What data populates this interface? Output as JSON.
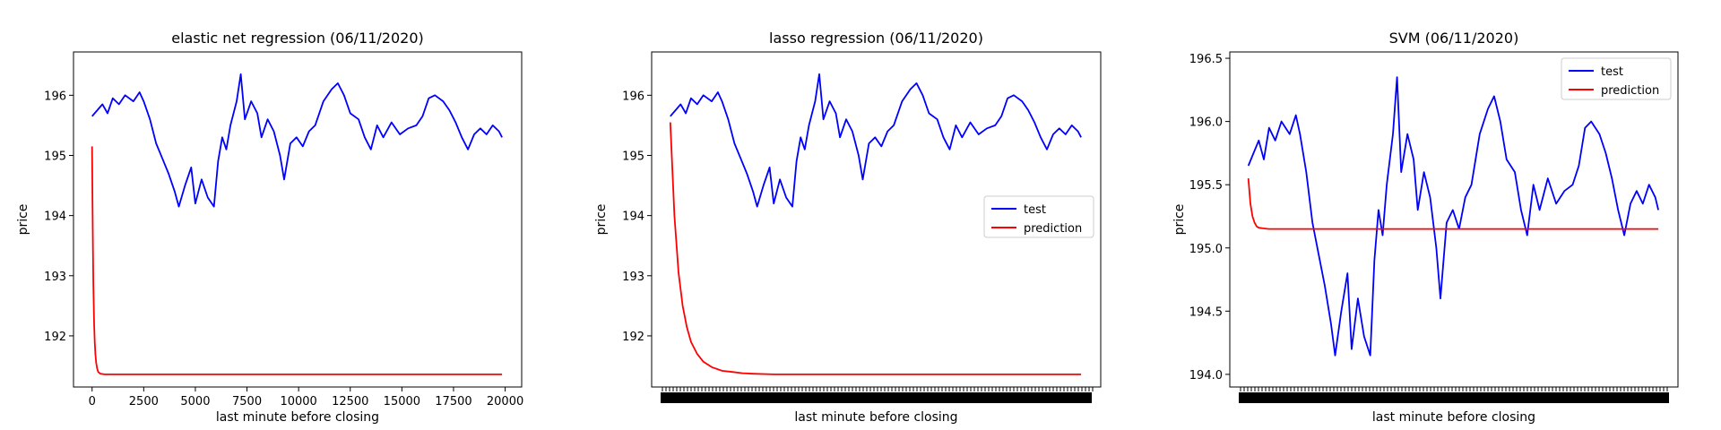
{
  "chart_data": [
    {
      "type": "line",
      "title": "elastic net regression (06/11/2020)",
      "xlabel": "last minute before closing",
      "ylabel": "price",
      "xlim": [
        -900,
        20800
      ],
      "ylim": [
        191.15,
        196.72
      ],
      "xticks": [
        0,
        2500,
        5000,
        7500,
        10000,
        12500,
        15000,
        17500,
        20000
      ],
      "xtick_labels": [
        "0",
        "2500",
        "5000",
        "7500",
        "10000",
        "12500",
        "15000",
        "17500",
        "20000"
      ],
      "yticks": [
        192,
        193,
        194,
        195,
        196
      ],
      "ytick_labels": [
        "192",
        "193",
        "194",
        "195",
        "196"
      ],
      "dense_x_ticks": false,
      "legend": null,
      "series": [
        {
          "color": "#0000ff",
          "x": [
            0,
            250,
            500,
            750,
            1000,
            1300,
            1600,
            2000,
            2300,
            2500,
            2800,
            3100,
            3400,
            3700,
            4000,
            4200,
            4500,
            4800,
            5000,
            5300,
            5600,
            5900,
            6100,
            6300,
            6500,
            6700,
            7000,
            7200,
            7400,
            7700,
            8000,
            8200,
            8500,
            8800,
            9100,
            9300,
            9600,
            9900,
            10200,
            10500,
            10800,
            11200,
            11600,
            11900,
            12200,
            12500,
            12900,
            13200,
            13500,
            13800,
            14100,
            14500,
            14900,
            15300,
            15700,
            16000,
            16300,
            16600,
            17000,
            17300,
            17600,
            17900,
            18200,
            18500,
            18800,
            19100,
            19400,
            19700,
            19850
          ],
          "y": [
            195.65,
            195.75,
            195.85,
            195.7,
            195.95,
            195.85,
            196.0,
            195.9,
            196.05,
            195.9,
            195.6,
            195.2,
            194.95,
            194.7,
            194.4,
            194.15,
            194.5,
            194.8,
            194.2,
            194.6,
            194.3,
            194.15,
            194.9,
            195.3,
            195.1,
            195.5,
            195.9,
            196.35,
            195.6,
            195.9,
            195.7,
            195.3,
            195.6,
            195.4,
            195.0,
            194.6,
            195.2,
            195.3,
            195.15,
            195.4,
            195.5,
            195.9,
            196.1,
            196.2,
            196.0,
            195.7,
            195.6,
            195.3,
            195.1,
            195.5,
            195.3,
            195.55,
            195.35,
            195.45,
            195.5,
            195.65,
            195.95,
            196.0,
            195.9,
            195.75,
            195.55,
            195.3,
            195.1,
            195.35,
            195.45,
            195.35,
            195.5,
            195.4,
            195.3
          ]
        },
        {
          "color": "#ff0000",
          "x": [
            0,
            20,
            40,
            60,
            80,
            100,
            130,
            160,
            200,
            250,
            300,
            400,
            600,
            1000,
            5000,
            10000,
            15000,
            19850
          ],
          "y": [
            195.15,
            194.2,
            193.45,
            192.9,
            192.5,
            192.2,
            191.9,
            191.7,
            191.55,
            191.45,
            191.4,
            191.37,
            191.36,
            191.36,
            191.36,
            191.36,
            191.36,
            191.36
          ]
        }
      ]
    },
    {
      "type": "line",
      "title": "lasso regression (06/11/2020)",
      "xlabel": "last minute before closing",
      "ylabel": "price",
      "xlim": [
        -900,
        20800
      ],
      "ylim": [
        191.15,
        196.72
      ],
      "xticks": [],
      "xtick_labels": [],
      "yticks": [
        192,
        193,
        194,
        195,
        196
      ],
      "ytick_labels": [
        "192",
        "193",
        "194",
        "195",
        "196"
      ],
      "dense_x_ticks": true,
      "legend": {
        "position": "center-right",
        "entries": [
          "test",
          "prediction"
        ]
      },
      "series": [
        {
          "name": "test",
          "color": "#0000ff",
          "x": [
            0,
            250,
            500,
            750,
            1000,
            1300,
            1600,
            2000,
            2300,
            2500,
            2800,
            3100,
            3400,
            3700,
            4000,
            4200,
            4500,
            4800,
            5000,
            5300,
            5600,
            5900,
            6100,
            6300,
            6500,
            6700,
            7000,
            7200,
            7400,
            7700,
            8000,
            8200,
            8500,
            8800,
            9100,
            9300,
            9600,
            9900,
            10200,
            10500,
            10800,
            11200,
            11600,
            11900,
            12200,
            12500,
            12900,
            13200,
            13500,
            13800,
            14100,
            14500,
            14900,
            15300,
            15700,
            16000,
            16300,
            16600,
            17000,
            17300,
            17600,
            17900,
            18200,
            18500,
            18800,
            19100,
            19400,
            19700,
            19850
          ],
          "y": [
            195.65,
            195.75,
            195.85,
            195.7,
            195.95,
            195.85,
            196.0,
            195.9,
            196.05,
            195.9,
            195.6,
            195.2,
            194.95,
            194.7,
            194.4,
            194.15,
            194.5,
            194.8,
            194.2,
            194.6,
            194.3,
            194.15,
            194.9,
            195.3,
            195.1,
            195.5,
            195.9,
            196.35,
            195.6,
            195.9,
            195.7,
            195.3,
            195.6,
            195.4,
            195.0,
            194.6,
            195.2,
            195.3,
            195.15,
            195.4,
            195.5,
            195.9,
            196.1,
            196.2,
            196.0,
            195.7,
            195.6,
            195.3,
            195.1,
            195.5,
            195.3,
            195.55,
            195.35,
            195.45,
            195.5,
            195.65,
            195.95,
            196.0,
            195.9,
            195.75,
            195.55,
            195.3,
            195.1,
            195.35,
            195.45,
            195.35,
            195.5,
            195.4,
            195.3
          ]
        },
        {
          "name": "prediction",
          "color": "#ff0000",
          "x": [
            0,
            200,
            400,
            600,
            800,
            1000,
            1300,
            1600,
            2000,
            2500,
            3000,
            3500,
            4000,
            5000,
            6000,
            8000,
            12000,
            16000,
            19850
          ],
          "y": [
            195.55,
            194.0,
            193.05,
            192.5,
            192.15,
            191.9,
            191.7,
            191.57,
            191.48,
            191.42,
            191.4,
            191.38,
            191.37,
            191.36,
            191.36,
            191.36,
            191.36,
            191.36,
            191.36
          ]
        }
      ]
    },
    {
      "type": "line",
      "title": "SVM (06/11/2020)",
      "xlabel": "last minute before closing",
      "ylabel": "price",
      "xlim": [
        -900,
        20800
      ],
      "ylim": [
        193.9,
        196.55
      ],
      "xticks": [],
      "xtick_labels": [],
      "yticks": [
        194.0,
        194.5,
        195.0,
        195.5,
        196.0,
        196.5
      ],
      "ytick_labels": [
        "194.0",
        "194.5",
        "195.0",
        "195.5",
        "196.0",
        "196.5"
      ],
      "dense_x_ticks": true,
      "legend": {
        "position": "top-right",
        "entries": [
          "test",
          "prediction"
        ]
      },
      "series": [
        {
          "name": "test",
          "color": "#0000ff",
          "x": [
            0,
            250,
            500,
            750,
            1000,
            1300,
            1600,
            2000,
            2300,
            2500,
            2800,
            3100,
            3400,
            3700,
            4000,
            4200,
            4500,
            4800,
            5000,
            5300,
            5600,
            5900,
            6100,
            6300,
            6500,
            6700,
            7000,
            7200,
            7400,
            7700,
            8000,
            8200,
            8500,
            8800,
            9100,
            9300,
            9600,
            9900,
            10200,
            10500,
            10800,
            11200,
            11600,
            11900,
            12200,
            12500,
            12900,
            13200,
            13500,
            13800,
            14100,
            14500,
            14900,
            15300,
            15700,
            16000,
            16300,
            16600,
            17000,
            17300,
            17600,
            17900,
            18200,
            18500,
            18800,
            19100,
            19400,
            19700,
            19850
          ],
          "y": [
            195.65,
            195.75,
            195.85,
            195.7,
            195.95,
            195.85,
            196.0,
            195.9,
            196.05,
            195.9,
            195.6,
            195.2,
            194.95,
            194.7,
            194.4,
            194.15,
            194.5,
            194.8,
            194.2,
            194.6,
            194.3,
            194.15,
            194.9,
            195.3,
            195.1,
            195.5,
            195.9,
            196.35,
            195.6,
            195.9,
            195.7,
            195.3,
            195.6,
            195.4,
            195.0,
            194.6,
            195.2,
            195.3,
            195.15,
            195.4,
            195.5,
            195.9,
            196.1,
            196.2,
            196.0,
            195.7,
            195.6,
            195.3,
            195.1,
            195.5,
            195.3,
            195.55,
            195.35,
            195.45,
            195.5,
            195.65,
            195.95,
            196.0,
            195.9,
            195.75,
            195.55,
            195.3,
            195.1,
            195.35,
            195.45,
            195.35,
            195.5,
            195.4,
            195.3
          ]
        },
        {
          "name": "prediction",
          "color": "#ff0000",
          "x": [
            0,
            100,
            200,
            300,
            400,
            500,
            700,
            1000,
            1500,
            3000,
            8000,
            14000,
            19850
          ],
          "y": [
            195.55,
            195.35,
            195.25,
            195.2,
            195.17,
            195.16,
            195.155,
            195.15,
            195.15,
            195.15,
            195.15,
            195.15,
            195.15
          ]
        }
      ]
    }
  ]
}
